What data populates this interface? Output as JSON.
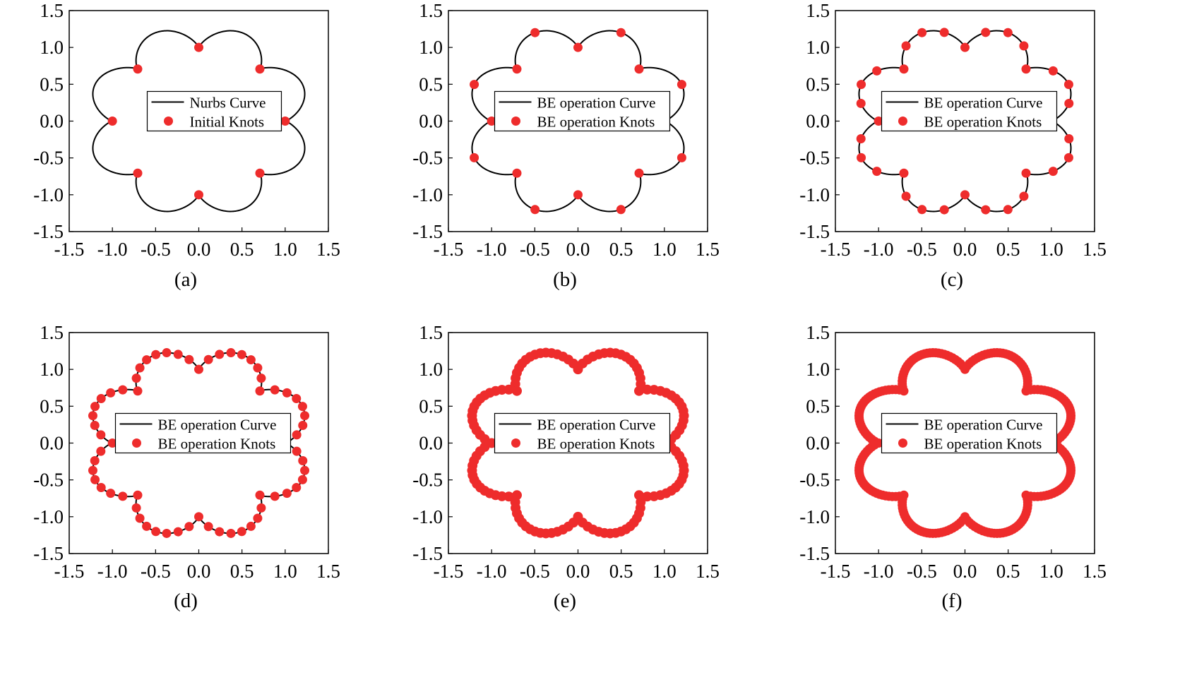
{
  "chart_data": [
    {
      "panel_label": "(a)",
      "type": "scatter",
      "xlim": [
        -1.5,
        1.5
      ],
      "ylim": [
        -1.5,
        1.5
      ],
      "xticks": [
        "-1.5",
        "-1.0",
        "-0.5",
        "0.0",
        "0.5",
        "1.0",
        "1.5"
      ],
      "yticks": [
        "-1.5",
        "-1.0",
        "-0.5",
        "0.0",
        "0.5",
        "1.0",
        "1.5"
      ],
      "grid": false,
      "legend_position": "center",
      "series": [
        {
          "name": "Nurbs Curve",
          "kind": "line",
          "color": "#000000"
        },
        {
          "name": "Initial Knots",
          "kind": "marker",
          "color": "#ee2c2c",
          "count": 8
        }
      ]
    },
    {
      "panel_label": "(b)",
      "type": "scatter",
      "xlim": [
        -1.5,
        1.5
      ],
      "ylim": [
        -1.5,
        1.5
      ],
      "xticks": [
        "-1.5",
        "-1.0",
        "-0.5",
        "0.0",
        "0.5",
        "1.0",
        "1.5"
      ],
      "yticks": [
        "-1.5",
        "-1.0",
        "-0.5",
        "0.0",
        "0.5",
        "1.0",
        "1.5"
      ],
      "grid": false,
      "legend_position": "center",
      "series": [
        {
          "name": "BE operation Curve",
          "kind": "line",
          "color": "#000000"
        },
        {
          "name": "BE operation Knots",
          "kind": "marker",
          "color": "#ee2c2c",
          "count": 16
        }
      ]
    },
    {
      "panel_label": "(c)",
      "type": "scatter",
      "xlim": [
        -1.5,
        1.5
      ],
      "ylim": [
        -1.5,
        1.5
      ],
      "xticks": [
        "-1.5",
        "-1.0",
        "-0.5",
        "0.0",
        "0.5",
        "1.0",
        "1.5"
      ],
      "yticks": [
        "-1.5",
        "-1.0",
        "-0.5",
        "0.0",
        "0.5",
        "1.0",
        "1.5"
      ],
      "grid": false,
      "legend_position": "center",
      "series": [
        {
          "name": "BE operation Curve",
          "kind": "line",
          "color": "#000000"
        },
        {
          "name": "BE operation Knots",
          "kind": "marker",
          "color": "#ee2c2c",
          "count": 32
        }
      ]
    },
    {
      "panel_label": "(d)",
      "type": "scatter",
      "xlim": [
        -1.5,
        1.5
      ],
      "ylim": [
        -1.5,
        1.5
      ],
      "xticks": [
        "-1.5",
        "-1.0",
        "-0.5",
        "0.0",
        "0.5",
        "1.0",
        "1.5"
      ],
      "yticks": [
        "-1.5",
        "-1.0",
        "-0.5",
        "0.0",
        "0.5",
        "1.0",
        "1.5"
      ],
      "grid": false,
      "legend_position": "center",
      "series": [
        {
          "name": "BE operation Curve",
          "kind": "line",
          "color": "#000000"
        },
        {
          "name": "BE operation Knots",
          "kind": "marker",
          "color": "#ee2c2c",
          "count": 64
        }
      ]
    },
    {
      "panel_label": "(e)",
      "type": "scatter",
      "xlim": [
        -1.5,
        1.5
      ],
      "ylim": [
        -1.5,
        1.5
      ],
      "xticks": [
        "-1.5",
        "-1.0",
        "-0.5",
        "0.0",
        "0.5",
        "1.0",
        "1.5"
      ],
      "yticks": [
        "-1.5",
        "-1.0",
        "-0.5",
        "0.0",
        "0.5",
        "1.0",
        "1.5"
      ],
      "grid": false,
      "legend_position": "center",
      "series": [
        {
          "name": "BE operation Curve",
          "kind": "line",
          "color": "#000000"
        },
        {
          "name": "BE operation Knots",
          "kind": "marker",
          "color": "#ee2c2c",
          "count": 128
        }
      ]
    },
    {
      "panel_label": "(f)",
      "type": "scatter",
      "xlim": [
        -1.5,
        1.5
      ],
      "ylim": [
        -1.5,
        1.5
      ],
      "xticks": [
        "-1.5",
        "-1.0",
        "-0.5",
        "0.0",
        "0.5",
        "1.0",
        "1.5"
      ],
      "yticks": [
        "-1.5",
        "-1.0",
        "-0.5",
        "0.0",
        "0.5",
        "1.0",
        "1.5"
      ],
      "grid": false,
      "legend_position": "center",
      "series": [
        {
          "name": "BE operation Curve",
          "kind": "line",
          "color": "#000000"
        },
        {
          "name": "BE operation Knots",
          "kind": "marker",
          "color": "#ee2c2c",
          "count": 256
        }
      ]
    }
  ]
}
